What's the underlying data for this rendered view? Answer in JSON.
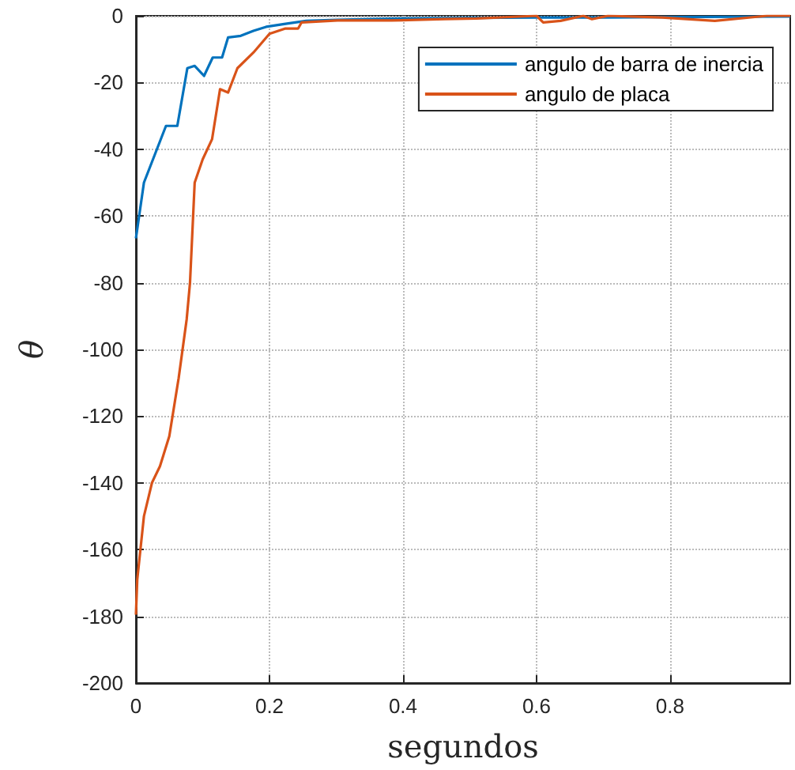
{
  "chart_data": {
    "type": "line",
    "xlabel": "segundos",
    "ylabel": "θ",
    "xlim": [
      0,
      0.98
    ],
    "ylim": [
      -200,
      0
    ],
    "xticks": [
      0,
      0.2,
      0.4,
      0.6,
      0.8
    ],
    "yticks": [
      -200,
      -180,
      -160,
      -140,
      -120,
      -100,
      -80,
      -60,
      -40,
      -20,
      0
    ],
    "grid": true,
    "legend": "top right",
    "marker": "none",
    "line_style": "solid",
    "series": [
      {
        "name": "angulo de barra de inercia",
        "color": "#0072bd",
        "x": [
          0,
          0.012,
          0.045,
          0.062,
          0.077,
          0.088,
          0.102,
          0.115,
          0.129,
          0.138,
          0.157,
          0.176,
          0.195,
          0.224,
          0.255,
          0.3,
          0.35,
          0.4,
          0.5,
          0.6,
          0.7,
          0.8,
          0.9,
          0.98
        ],
        "values": [
          -66.7,
          -50,
          -33,
          -33,
          -15.7,
          -15,
          -18,
          -12.5,
          -12.5,
          -6.5,
          -6,
          -4.5,
          -3.3,
          -2.4,
          -1.5,
          -1.2,
          -1,
          -0.8,
          -0.6,
          -0.5,
          -0.5,
          -0.4,
          -0.3,
          -0.2
        ]
      },
      {
        "name": "angulo de placa",
        "color": "#d95319",
        "x": [
          0,
          0.002,
          0.012,
          0.024,
          0.036,
          0.05,
          0.064,
          0.076,
          0.081,
          0.088,
          0.1,
          0.114,
          0.126,
          0.138,
          0.152,
          0.176,
          0.2,
          0.224,
          0.243,
          0.248,
          0.302,
          0.383,
          0.462,
          0.51,
          0.6,
          0.61,
          0.636,
          0.67,
          0.683,
          0.707,
          0.788,
          0.867,
          0.945,
          0.98
        ],
        "values": [
          -179.5,
          -169,
          -150,
          -140,
          -135,
          -126,
          -108.6,
          -91,
          -80,
          -50,
          -43,
          -37,
          -22,
          -23,
          -15.7,
          -11,
          -5.4,
          -3.8,
          -3.8,
          -2,
          -1.4,
          -1.4,
          -1,
          -0.8,
          0,
          -2,
          -1.5,
          0,
          -1,
          0,
          -0.5,
          -1.5,
          0,
          0
        ]
      }
    ]
  }
}
